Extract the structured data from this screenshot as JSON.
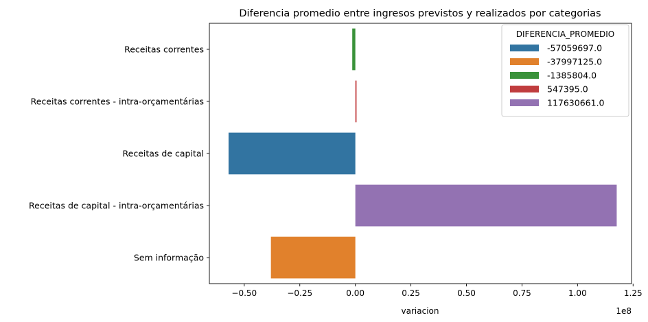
{
  "chart_data": {
    "type": "bar",
    "orientation": "horizontal",
    "title": "Diferencia promedio entre ingresos previstos y realizados por categorias",
    "xlabel": "variacion",
    "ylabel": "",
    "x_scale_label": "1e8",
    "xlim": [
      -0.657,
      1.243
    ],
    "x_ticks": [
      -0.5,
      -0.25,
      0.0,
      0.25,
      0.5,
      0.75,
      1.0,
      1.25
    ],
    "x_tick_labels": [
      "−0.50",
      "−0.25",
      "0.00",
      "0.25",
      "0.50",
      "0.75",
      "1.00",
      "1.25"
    ],
    "categories": [
      "Receitas correntes",
      "Receitas correntes - intra-orçamentárias",
      "Receitas de capital",
      "Receitas de capital - intra-orçamentárias",
      "Sem informação"
    ],
    "values": [
      -1385804.0,
      547395.0,
      -57059697.0,
      117630661.0,
      -37997125.0
    ],
    "bar_colors": [
      "#3a923a",
      "#c03d3e",
      "#3274a1",
      "#9372b2",
      "#e1812c"
    ],
    "grid": false,
    "legend": {
      "title": "DIFERENCIA_PROMEDIO",
      "placement": "top-right",
      "entries": [
        {
          "label": "-57059697.0",
          "color": "#3274a1"
        },
        {
          "label": "-37997125.0",
          "color": "#e1812c"
        },
        {
          "label": "-1385804.0",
          "color": "#3a923a"
        },
        {
          "label": "547395.0",
          "color": "#c03d3e"
        },
        {
          "label": "117630661.0",
          "color": "#9372b2"
        }
      ]
    }
  }
}
